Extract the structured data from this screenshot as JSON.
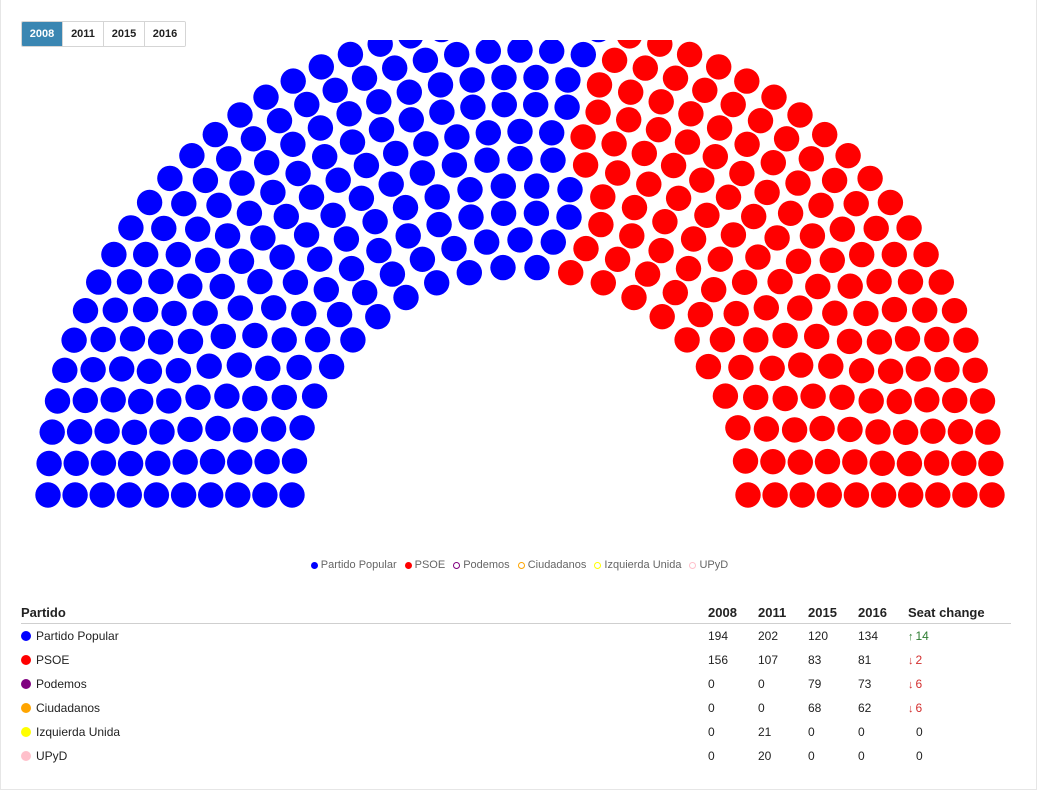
{
  "tabs": [
    "2008",
    "2011",
    "2015",
    "2016"
  ],
  "active_tab": "2008",
  "legend": [
    {
      "label": "Partido Popular",
      "color": "#0000ff",
      "filled": true
    },
    {
      "label": "PSOE",
      "color": "#ff0000",
      "filled": true
    },
    {
      "label": "Podemos",
      "color": "#800080",
      "filled": false
    },
    {
      "label": "Ciudadanos",
      "color": "#ffa500",
      "filled": false
    },
    {
      "label": "Izquierda Unida",
      "color": "#ffff00",
      "filled": false
    },
    {
      "label": "UPyD",
      "color": "#ffc0cb",
      "filled": false
    }
  ],
  "chart_data": {
    "type": "parliament",
    "year": "2008",
    "series": [
      {
        "name": "Partido Popular",
        "color": "#0000ff",
        "seats": 194
      },
      {
        "name": "PSOE",
        "color": "#ff0000",
        "seats": 156
      },
      {
        "name": "Podemos",
        "color": "#800080",
        "seats": 0
      },
      {
        "name": "Ciudadanos",
        "color": "#ffa500",
        "seats": 0
      },
      {
        "name": "Izquierda Unida",
        "color": "#ffff00",
        "seats": 0
      },
      {
        "name": "UPyD",
        "color": "#ffc0cb",
        "seats": 0
      }
    ]
  },
  "table": {
    "headers": [
      "Partido",
      "2008",
      "2011",
      "2015",
      "2016",
      "Seat change"
    ],
    "rows": [
      {
        "party": "Partido Popular",
        "color": "#0000ff",
        "y2008": "194",
        "y2011": "202",
        "y2015": "120",
        "y2016": "134",
        "change": "14",
        "dir": "up"
      },
      {
        "party": "PSOE",
        "color": "#ff0000",
        "y2008": "156",
        "y2011": "107",
        "y2015": "83",
        "y2016": "81",
        "change": "2",
        "dir": "down"
      },
      {
        "party": "Podemos",
        "color": "#800080",
        "y2008": "0",
        "y2011": "0",
        "y2015": "79",
        "y2016": "73",
        "change": "6",
        "dir": "down"
      },
      {
        "party": "Ciudadanos",
        "color": "#ffa500",
        "y2008": "0",
        "y2011": "0",
        "y2015": "68",
        "y2016": "62",
        "change": "6",
        "dir": "down"
      },
      {
        "party": "Izquierda Unida",
        "color": "#ffff00",
        "y2008": "0",
        "y2011": "21",
        "y2015": "0",
        "y2016": "0",
        "change": "0",
        "dir": "none"
      },
      {
        "party": "UPyD",
        "color": "#ffc0cb",
        "y2008": "0",
        "y2011": "20",
        "y2015": "0",
        "y2016": "0",
        "change": "0",
        "dir": "none"
      }
    ]
  }
}
